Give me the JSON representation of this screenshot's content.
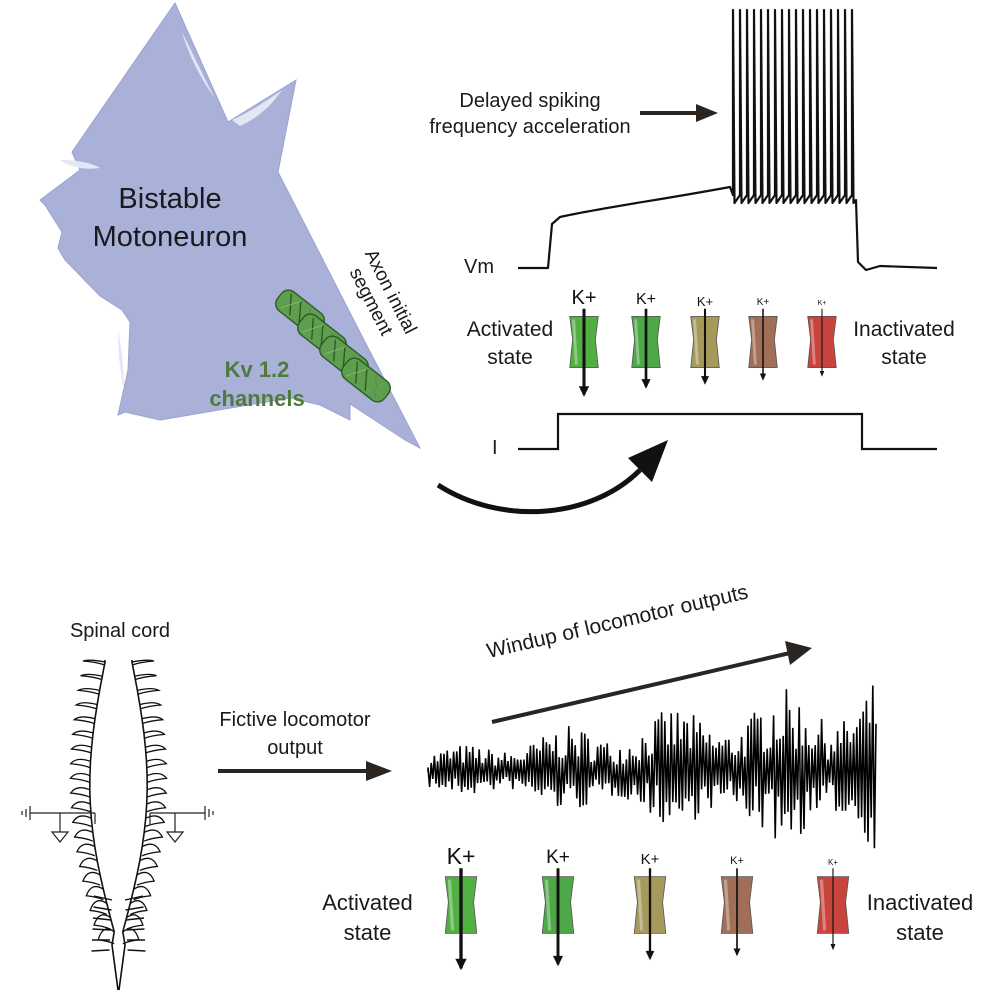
{
  "neuron": {
    "title_line1": "Bistable",
    "title_line2": "Motoneuron",
    "ais_line1": "Axon initial",
    "ais_line2": "segment",
    "kv_line1": "Kv 1.2",
    "kv_line2": "channels",
    "body_color": "#a9b1d9",
    "channel_color": "#5e9e4f"
  },
  "trace": {
    "spike_label_line1": "Delayed spiking",
    "spike_label_line2": "frequency acceleration",
    "vm_label": "Vm",
    "current_label": "I",
    "spike_count": 18
  },
  "channels_top": {
    "activated_line1": "Activated",
    "activated_line2": "state",
    "inactivated_line1": "Inactivated",
    "inactivated_line2": "state",
    "ion_label": "K+"
  },
  "spinal": {
    "title": "Spinal cord",
    "fictive_line1": "Fictive locomotor",
    "fictive_line2": "output",
    "windup_label": "Windup of locomotor outputs"
  },
  "channels_bottom": {
    "activated_line1": "Activated",
    "activated_line2": "state",
    "inactivated_line1": "Inactivated",
    "inactivated_line2": "state",
    "ion_label": "K+"
  },
  "channel_states": [
    {
      "color": "#52b043"
    },
    {
      "color": "#4fa848"
    },
    {
      "color": "#a59a5c"
    },
    {
      "color": "#a16e57"
    },
    {
      "color": "#c9443d"
    }
  ]
}
